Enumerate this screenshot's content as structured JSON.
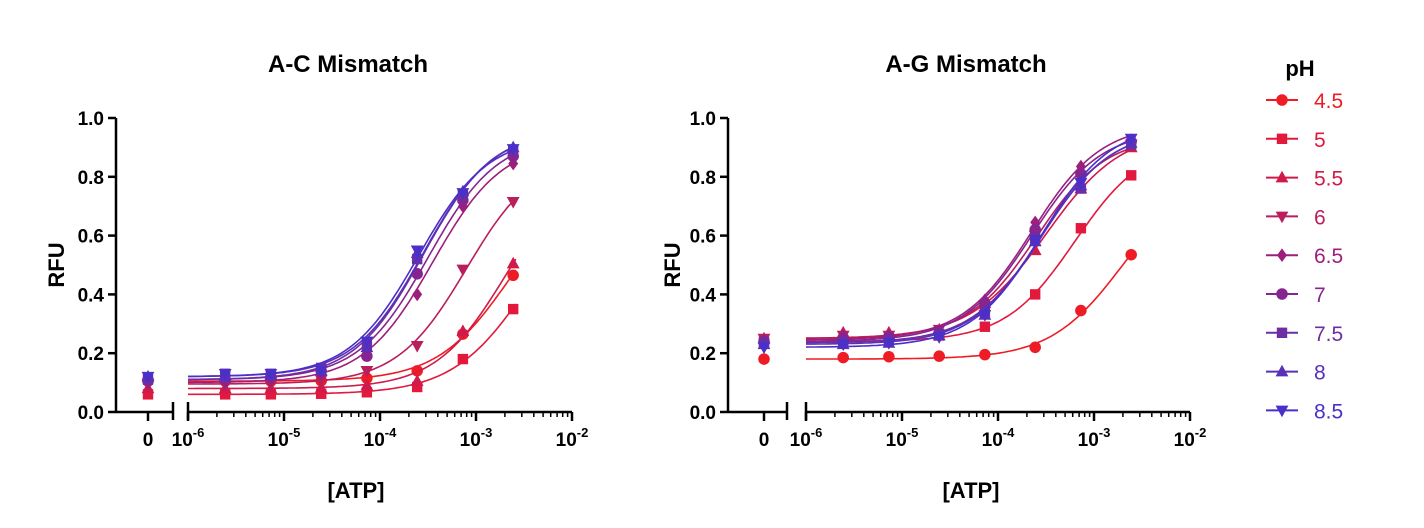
{
  "chart_data": [
    {
      "type": "scatter",
      "title": "A-C  Mismatch",
      "xlabel": "[ATP]",
      "ylabel": "RFU",
      "x_scale": "log",
      "xlim": [
        1e-06,
        0.01
      ],
      "ylim": [
        0,
        1.0
      ],
      "yticks": [
        "0.0",
        "0.2",
        "0.4",
        "0.6",
        "0.8",
        "1.0"
      ],
      "xticks": [
        {
          "base": "0",
          "exp": ""
        },
        {
          "base": "10",
          "exp": "-6"
        },
        {
          "base": "10",
          "exp": "-5"
        },
        {
          "base": "10",
          "exp": "-4"
        },
        {
          "base": "10",
          "exp": "-3"
        },
        {
          "base": "10",
          "exp": "-2"
        }
      ],
      "x": [
        0,
        2.44e-06,
        7.3e-06,
        2.44e-05,
        7.3e-05,
        0.000244,
        0.00073,
        0.00244
      ],
      "series": [
        {
          "name": "4.5",
          "values": [
            0.105,
            0.105,
            0.105,
            0.106,
            0.115,
            0.14,
            0.265,
            0.465
          ]
        },
        {
          "name": "5",
          "values": [
            0.06,
            0.06,
            0.06,
            0.062,
            0.067,
            0.085,
            0.18,
            0.35
          ]
        },
        {
          "name": "5.5",
          "values": [
            0.08,
            0.08,
            0.08,
            0.082,
            0.09,
            0.105,
            0.275,
            0.505
          ]
        },
        {
          "name": "6",
          "values": [
            0.095,
            0.095,
            0.1,
            0.11,
            0.14,
            0.225,
            0.485,
            0.715
          ]
        },
        {
          "name": "6.5",
          "values": [
            0.1,
            0.1,
            0.11,
            0.13,
            0.2,
            0.4,
            0.7,
            0.845
          ]
        },
        {
          "name": "7",
          "values": [
            0.11,
            0.11,
            0.12,
            0.14,
            0.19,
            0.47,
            0.72,
            0.87
          ]
        },
        {
          "name": "7.5",
          "values": [
            0.11,
            0.13,
            0.13,
            0.15,
            0.23,
            0.52,
            0.74,
            0.89
          ]
        },
        {
          "name": "8",
          "values": [
            0.12,
            0.12,
            0.125,
            0.14,
            0.22,
            0.54,
            0.75,
            0.9
          ]
        },
        {
          "name": "8.5",
          "values": [
            0.12,
            0.13,
            0.13,
            0.14,
            0.24,
            0.55,
            0.745,
            0.895
          ]
        }
      ]
    },
    {
      "type": "scatter",
      "title": "A-G Mismatch",
      "xlabel": "[ATP]",
      "ylabel": "RFU",
      "x_scale": "log",
      "xlim": [
        1e-06,
        0.01
      ],
      "ylim": [
        0,
        1.0
      ],
      "yticks": [
        "0.0",
        "0.2",
        "0.4",
        "0.6",
        "0.8",
        "1.0"
      ],
      "xticks": [
        {
          "base": "0",
          "exp": ""
        },
        {
          "base": "10",
          "exp": "-6"
        },
        {
          "base": "10",
          "exp": "-5"
        },
        {
          "base": "10",
          "exp": "-4"
        },
        {
          "base": "10",
          "exp": "-3"
        },
        {
          "base": "10",
          "exp": "-2"
        }
      ],
      "x": [
        0,
        2.44e-06,
        7.3e-06,
        2.44e-05,
        7.3e-05,
        0.000244,
        0.00073,
        0.00244
      ],
      "series": [
        {
          "name": "4.5",
          "values": [
            0.18,
            0.185,
            0.188,
            0.19,
            0.195,
            0.22,
            0.345,
            0.535
          ]
        },
        {
          "name": "5",
          "values": [
            0.24,
            0.245,
            0.25,
            0.26,
            0.29,
            0.4,
            0.625,
            0.805
          ]
        },
        {
          "name": "5.5",
          "values": [
            0.25,
            0.27,
            0.27,
            0.28,
            0.37,
            0.55,
            0.76,
            0.9
          ]
        },
        {
          "name": "6",
          "values": [
            0.25,
            0.26,
            0.26,
            0.28,
            0.36,
            0.6,
            0.78,
            0.91
          ]
        },
        {
          "name": "6.5",
          "values": [
            0.245,
            0.26,
            0.26,
            0.27,
            0.38,
            0.645,
            0.835,
            0.925
          ]
        },
        {
          "name": "7",
          "values": [
            0.24,
            0.25,
            0.255,
            0.27,
            0.37,
            0.62,
            0.81,
            0.92
          ]
        },
        {
          "name": "7.5",
          "values": [
            0.235,
            0.24,
            0.245,
            0.265,
            0.34,
            0.59,
            0.76,
            0.91
          ]
        },
        {
          "name": "8",
          "values": [
            0.23,
            0.23,
            0.235,
            0.26,
            0.33,
            0.58,
            0.77,
            0.915
          ]
        },
        {
          "name": "8.5",
          "values": [
            0.22,
            0.23,
            0.235,
            0.255,
            0.33,
            0.585,
            0.78,
            0.93
          ]
        }
      ]
    }
  ],
  "legend": {
    "title": "pH",
    "placement": "right",
    "items": [
      {
        "label": "4.5",
        "color": "#ee1c25",
        "marker": "circle"
      },
      {
        "label": "5",
        "color": "#e3183d",
        "marker": "square"
      },
      {
        "label": "5.5",
        "color": "#cf1a4a",
        "marker": "triangle-up"
      },
      {
        "label": "6",
        "color": "#b81f5c",
        "marker": "triangle-down"
      },
      {
        "label": "6.5",
        "color": "#9c1f7c",
        "marker": "diamond"
      },
      {
        "label": "7",
        "color": "#86258f",
        "marker": "circle"
      },
      {
        "label": "7.5",
        "color": "#6d2ea3",
        "marker": "square"
      },
      {
        "label": "8",
        "color": "#5a30b8",
        "marker": "triangle-up"
      },
      {
        "label": "8.5",
        "color": "#4a2fc8",
        "marker": "triangle-down"
      }
    ]
  }
}
